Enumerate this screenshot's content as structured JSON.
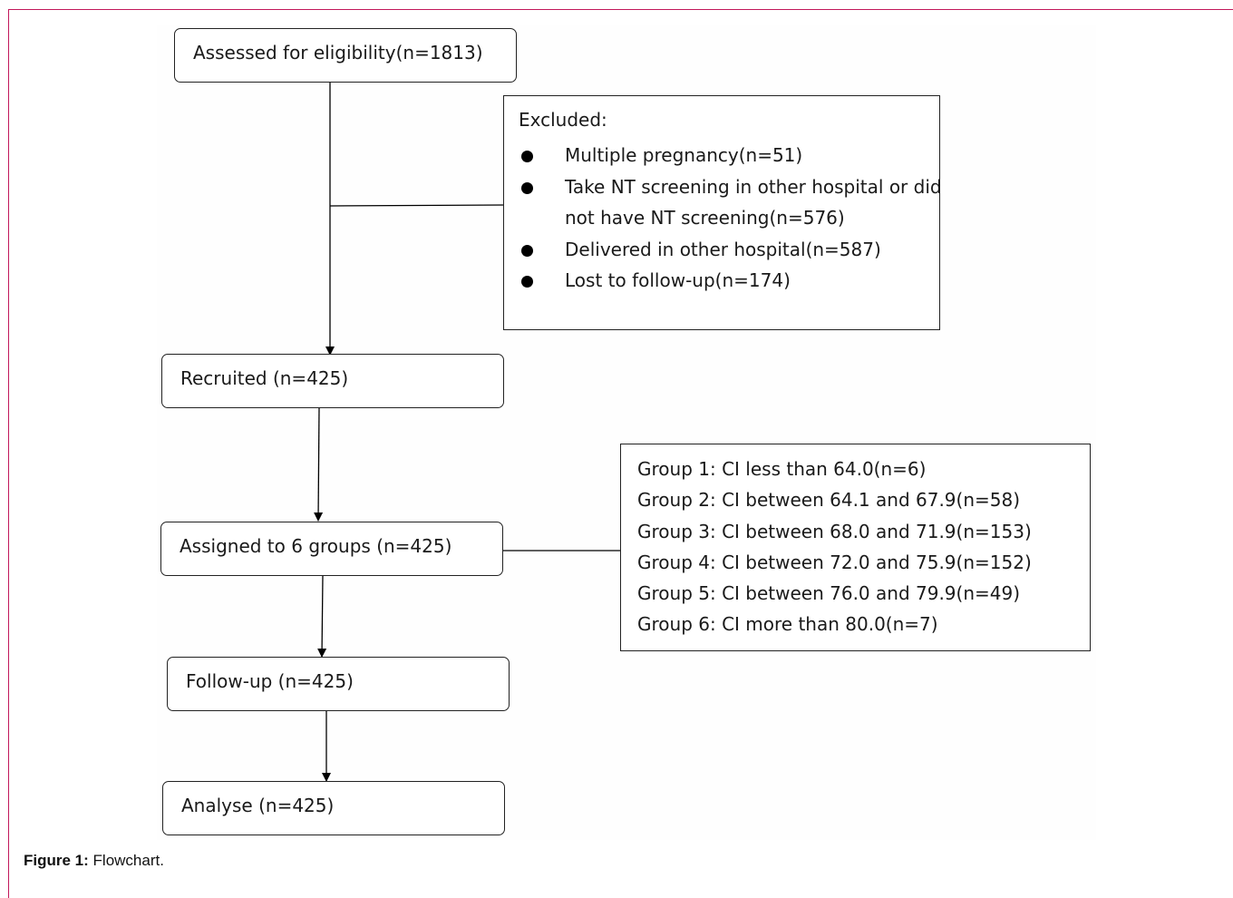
{
  "flow": {
    "assessed": "Assessed for eligibility(n=1813)",
    "recruited": "Recruited (n=425)",
    "assigned": "Assigned to 6 groups (n=425)",
    "followup": "Follow-up (n=425)",
    "analyse": "Analyse (n=425)"
  },
  "excluded": {
    "title": "Excluded:",
    "items": [
      "Multiple pregnancy(n=51)",
      "Take NT screening in other hospital or did not have NT screening(n=576)",
      "Delivered in other hospital(n=587)",
      "Lost to follow-up(n=174)"
    ]
  },
  "groups": {
    "items": [
      "Group 1: CI less than 64.0(n=6)",
      "Group 2: CI between 64.1 and 67.9(n=58)",
      "Group 3: CI between 68.0 and 71.9(n=153)",
      "Group 4: CI between 72.0 and 75.9(n=152)",
      "Group 5: CI between 76.0 and 79.9(n=49)",
      "Group 6: CI more than 80.0(n=7)"
    ]
  },
  "caption": {
    "label": "Figure 1:",
    "text": "Flowchart."
  }
}
